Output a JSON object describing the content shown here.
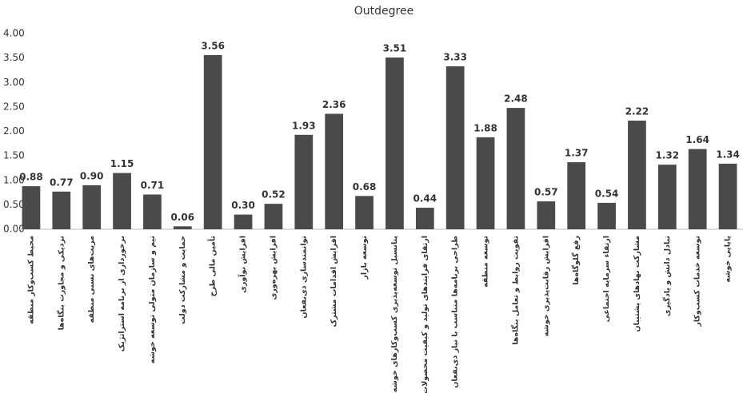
{
  "chart_data": {
    "type": "bar",
    "title": "Outdegree",
    "categories": [
      "محیط کسب‌وکار منطقه",
      "نزدیکی و مجاورت بنگاه‌ها",
      "مزیت‌های نسبی منطقه",
      "برخورداری از برنامه استراتژیک",
      "تیم و سازمان متولی توسعه خوشه",
      "حمایت و مشارکت دولت",
      "تأمین مالی طرح",
      "افزایش نوآوری",
      "افزایش بهره‌وری",
      "توانمندسازی ذی‌نفعان",
      "افزایش اقدامات مشترک",
      "توسعه بازار",
      "پتانسیل توسعه‌پذیری کسب‌وکارهای خوشه",
      "ارتقای فرایندهای تولید و کیفیت محصولات",
      "طراحی برنامه‌ها متناسب با نیاز ذی‌نفعان",
      "توسعه منطقه",
      "تقویت روابط و تعامل بنگاه‌ها",
      "افزایش رقابت‌پذیری خوشه",
      "رفع گلوگاه‌ها",
      "ارتقاء سرمایه اجتماعی",
      "مشارکت نهادهای پشتیبان",
      "تبادل دانش و یادگیری",
      "توسعه خدمات کسب‌وکار",
      "پایایی خوشه"
    ],
    "values": [
      0.88,
      0.77,
      0.9,
      1.15,
      0.71,
      0.06,
      3.56,
      0.3,
      0.52,
      1.93,
      2.36,
      0.68,
      3.51,
      0.44,
      3.33,
      1.88,
      2.48,
      0.57,
      1.37,
      0.54,
      2.22,
      1.32,
      1.64,
      1.34
    ],
    "value_labels": [
      "0.88",
      "0.77",
      "0.90",
      "1.15",
      "0.71",
      "0.06",
      "3.56",
      "0.30",
      "0.52",
      "1.93",
      "2.36",
      "0.68",
      "3.51",
      "0.44",
      "3.33",
      "1.88",
      "2.48",
      "0.57",
      "1.37",
      "0.54",
      "2.22",
      "1.32",
      "1.64",
      "1.34"
    ],
    "color": "#4a4a4a",
    "ylim": [
      0,
      4
    ],
    "yticks": [
      {
        "value": 0,
        "label": "0.00"
      },
      {
        "value": 0.5,
        "label": "0.50"
      },
      {
        "value": 1,
        "label": "1.00"
      },
      {
        "value": 1.5,
        "label": "1.50"
      },
      {
        "value": 2,
        "label": "2.00"
      },
      {
        "value": 2.5,
        "label": "2.50"
      },
      {
        "value": 3,
        "label": "3.00"
      },
      {
        "value": 3.5,
        "label": "3.50"
      },
      {
        "value": 4,
        "label": "4.00"
      }
    ],
    "grid": false
  }
}
